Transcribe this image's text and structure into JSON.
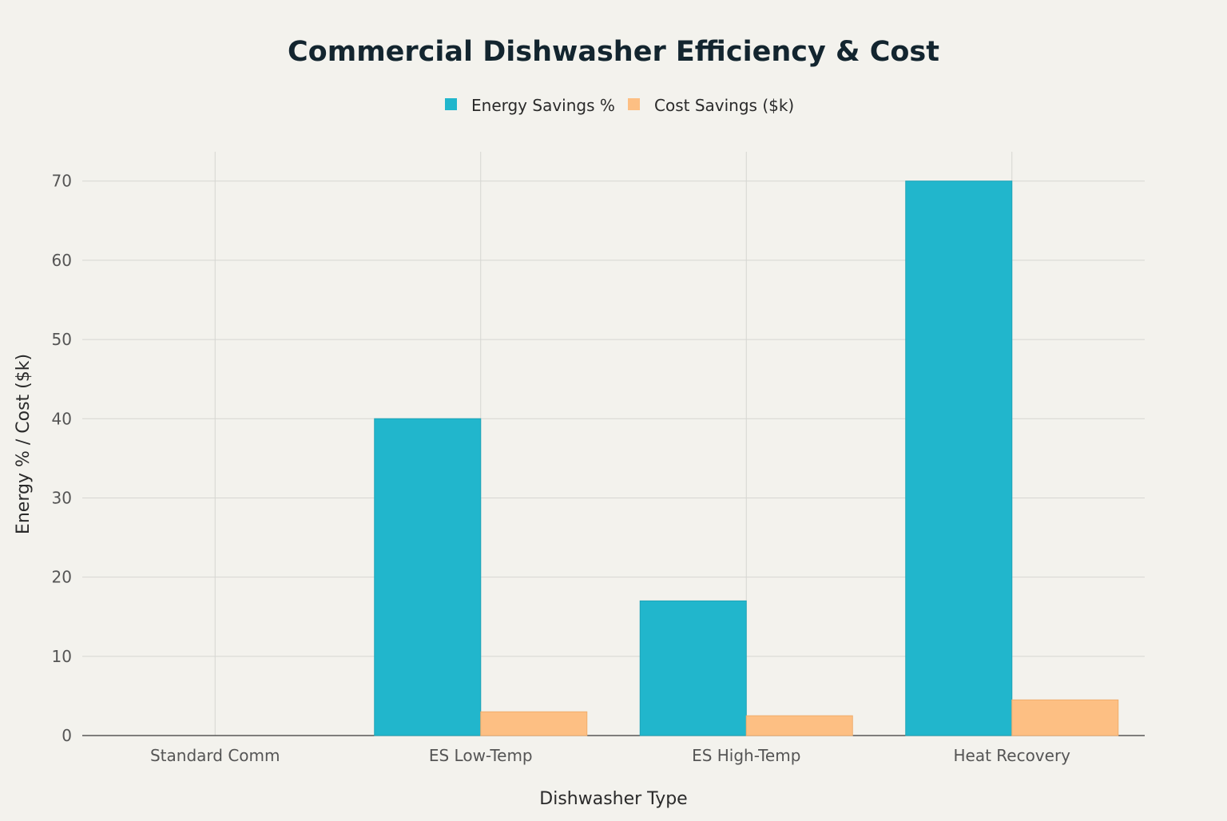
{
  "chart_data": {
    "type": "bar",
    "title": "Commercial Dishwasher Efficiency & Cost",
    "xlabel": "Dishwasher Type",
    "ylabel": "Energy % / Cost ($k)",
    "categories": [
      "Standard Comm",
      "ES Low-Temp",
      "ES High-Temp",
      "Heat Recovery"
    ],
    "series": [
      {
        "name": "Energy Savings %",
        "color": "#21b6cc",
        "values": [
          0,
          40,
          17,
          70
        ]
      },
      {
        "name": "Cost Savings ($k)",
        "color": "#fdbf83",
        "values": [
          0,
          3,
          2.5,
          4.5
        ]
      }
    ],
    "ylim": [
      0,
      73.7
    ],
    "yticks": [
      0,
      10,
      20,
      30,
      40,
      50,
      60,
      70
    ],
    "grid": true,
    "legend_position": "top-center"
  }
}
